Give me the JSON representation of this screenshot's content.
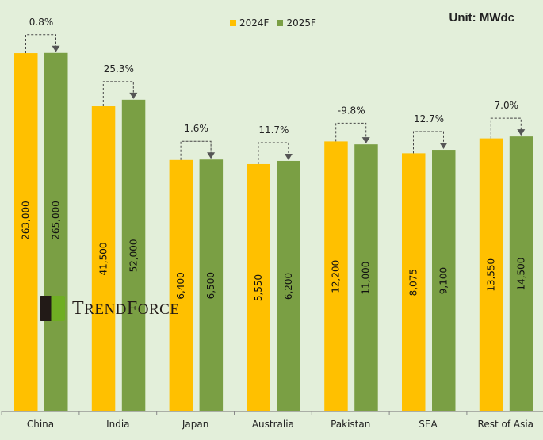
{
  "chart_data": {
    "type": "bar",
    "unit_label": "Unit: MWdc",
    "categories": [
      "China",
      "India",
      "Japan",
      "Australia",
      "Pakistan",
      "SEA",
      "Rest of Asia"
    ],
    "series": [
      {
        "name": "2024F",
        "color": "#FFC000",
        "values": [
          263000,
          41500,
          6400,
          5550,
          12200,
          8075,
          13550
        ],
        "labels": [
          "263,000",
          "41,500",
          "6,400",
          "5,550",
          "12,200",
          "8,075",
          "13,550"
        ]
      },
      {
        "name": "2025F",
        "color": "#7A9F44",
        "values": [
          265000,
          52000,
          6500,
          6200,
          11000,
          9100,
          14500
        ],
        "labels": [
          "265,000",
          "52,000",
          "6,500",
          "6,200",
          "11,000",
          "9,100",
          "14,500"
        ]
      }
    ],
    "growth_labels": [
      "0.8%",
      "25.3%",
      "1.6%",
      "11.7%",
      "-9.8%",
      "12.7%",
      "7.0%"
    ],
    "y_scale": "log",
    "grid": false,
    "legend_position": "top-center",
    "logo_text": "TrendForce"
  }
}
